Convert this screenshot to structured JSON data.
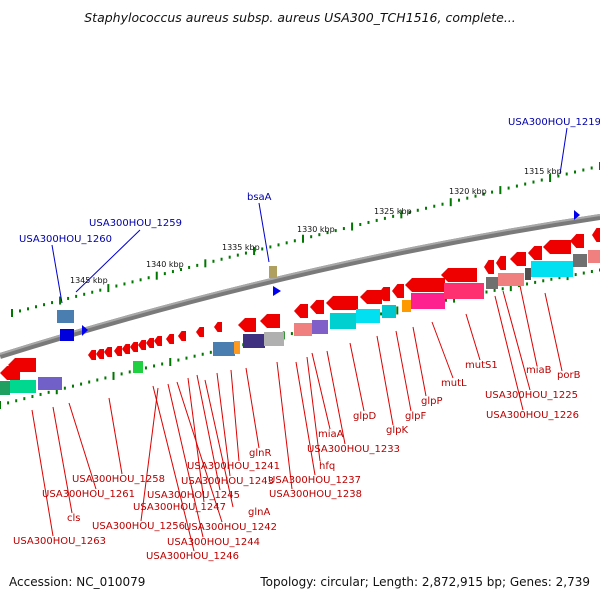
{
  "title": "Staphylococcus aureus subsp. aureus USA300_TCH1516, complete...",
  "accession": "Accession: NC_010079",
  "topology": "Topology: circular; Length: 2,872,915 bp; Genes: 2,739",
  "colors": {
    "backbone": "#6f6f6f",
    "gene_arrow": "#ee0000",
    "leader_red": "#dd0000",
    "leader_blue": "#0000cc",
    "ticks": "#007700"
  },
  "kbp_labels": [
    "1315 kbp",
    "1320 kbp",
    "1325 kbp",
    "1330 kbp",
    "1335 kbp",
    "1340 kbp",
    "1345 kbp"
  ],
  "top_labels": [
    "USA300HOU_1219",
    "bsaA",
    "USA300HOU_1259",
    "USA300HOU_1260"
  ],
  "bottom_labels": [
    "porB",
    "miaB",
    "USA300HOU_1225",
    "USA300HOU_1226",
    "mutS1",
    "mutL",
    "glpP",
    "glpF",
    "glpK",
    "glpD",
    "USA300HOU_1233",
    "miaA",
    "hfq",
    "USA300HOU_1237",
    "USA300HOU_1238",
    "glnR",
    "USA300HOU_1241",
    "USA300HOU_1243",
    "USA300HOU_1245",
    "USA300HOU_1247",
    "glnA",
    "USA300HOU_1242",
    "USA300HOU_1244",
    "USA300HOU_1246",
    "USA300HOU_1256",
    "USA300HOU_1258",
    "USA300HOU_1261",
    "cls",
    "USA300HOU_1263"
  ]
}
